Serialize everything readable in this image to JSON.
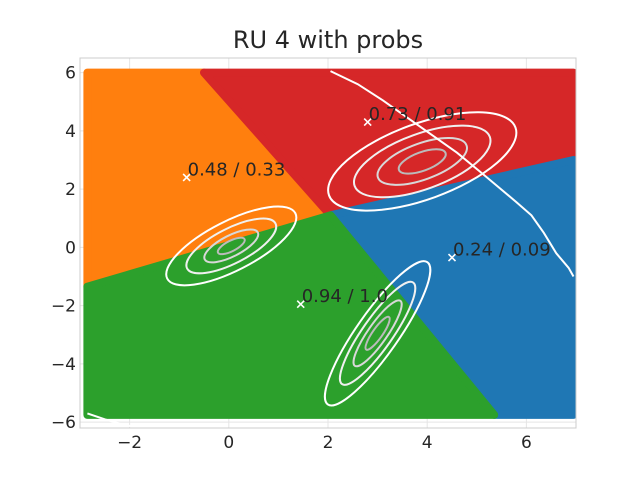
{
  "chart_data": {
    "type": "scatter",
    "title": "RU 4 with probs",
    "xlabel": "",
    "ylabel": "",
    "xlim": [
      -3.0,
      7.0
    ],
    "ylim": [
      -6.2,
      6.5
    ],
    "xticks": [
      -2,
      0,
      2,
      4,
      6
    ],
    "yticks": [
      -6,
      -4,
      -2,
      0,
      2,
      4,
      6
    ],
    "xtick_labels": [
      "−2",
      "0",
      "2",
      "4",
      "6"
    ],
    "ytick_labels": [
      "−6",
      "−4",
      "−2",
      "0",
      "2",
      "4",
      "6"
    ],
    "grid": true,
    "region_colors": {
      "orange": "#ff7f0e",
      "red": "#d62728",
      "blue": "#1f77b4",
      "green": "#2ca02c"
    },
    "regions": [
      {
        "color": "orange",
        "polygon": [
          [
            -2.85,
            6.0
          ],
          [
            -0.5,
            6.0
          ],
          [
            2.05,
            1.1
          ],
          [
            -2.85,
            -1.35
          ]
        ]
      },
      {
        "color": "red",
        "polygon": [
          [
            -0.5,
            6.0
          ],
          [
            6.95,
            6.0
          ],
          [
            6.95,
            3.0
          ],
          [
            2.05,
            1.1
          ]
        ]
      },
      {
        "color": "blue",
        "polygon": [
          [
            6.95,
            3.0
          ],
          [
            6.95,
            -5.75
          ],
          [
            5.35,
            -5.75
          ],
          [
            2.05,
            1.1
          ]
        ]
      },
      {
        "color": "green",
        "polygon": [
          [
            2.05,
            1.1
          ],
          [
            -2.85,
            -1.35
          ],
          [
            -2.85,
            -5.75
          ],
          [
            5.35,
            -5.75
          ]
        ]
      }
    ],
    "gaussians": [
      {
        "center": [
          0.05,
          0.05
        ],
        "rx": [
          1.45,
          1.0,
          0.6,
          0.3
        ],
        "ry": [
          0.85,
          0.6,
          0.36,
          0.18
        ],
        "angle_deg": -27
      },
      {
        "center": [
          3.0,
          -2.95
        ],
        "rx": [
          1.75,
          1.25,
          0.8,
          0.4
        ],
        "ry": [
          0.72,
          0.52,
          0.33,
          0.17
        ],
        "angle_deg": -55
      },
      {
        "center": [
          3.9,
          2.95
        ],
        "rx": [
          2.0,
          1.45,
          0.95,
          0.5
        ],
        "ry": [
          1.3,
          0.95,
          0.62,
          0.32
        ],
        "angle_deg": -20
      }
    ],
    "boundary_line": [
      [
        2.05,
        6.05
      ],
      [
        2.6,
        5.6
      ],
      [
        3.1,
        5.05
      ],
      [
        3.6,
        4.45
      ],
      [
        4.1,
        3.85
      ],
      [
        4.6,
        3.25
      ],
      [
        5.1,
        2.55
      ],
      [
        5.45,
        2.05
      ],
      [
        5.8,
        1.55
      ],
      [
        6.1,
        1.1
      ],
      [
        6.35,
        0.5
      ],
      [
        6.6,
        -0.2
      ],
      [
        6.85,
        -0.7
      ],
      [
        6.95,
        -1.0
      ]
    ],
    "boundary_line_lower": [
      [
        -2.85,
        -5.7
      ],
      [
        -2.5,
        -5.9
      ],
      [
        -2.2,
        -6.05
      ],
      [
        -1.95,
        -6.15
      ]
    ],
    "points": [
      {
        "x": -0.85,
        "y": 2.4,
        "label": "0.48 / 0.33"
      },
      {
        "x": 2.8,
        "y": 4.3,
        "label": "0.73 / 0.91"
      },
      {
        "x": 4.5,
        "y": -0.35,
        "label": "0.24 / 0.09"
      },
      {
        "x": 1.45,
        "y": -1.95,
        "label": "0.94 / 1.0"
      }
    ],
    "contour_colors": [
      "#ffffff",
      "#f0f0f0",
      "#d8d8d8",
      "#bbbbbb"
    ],
    "legend": "none"
  }
}
